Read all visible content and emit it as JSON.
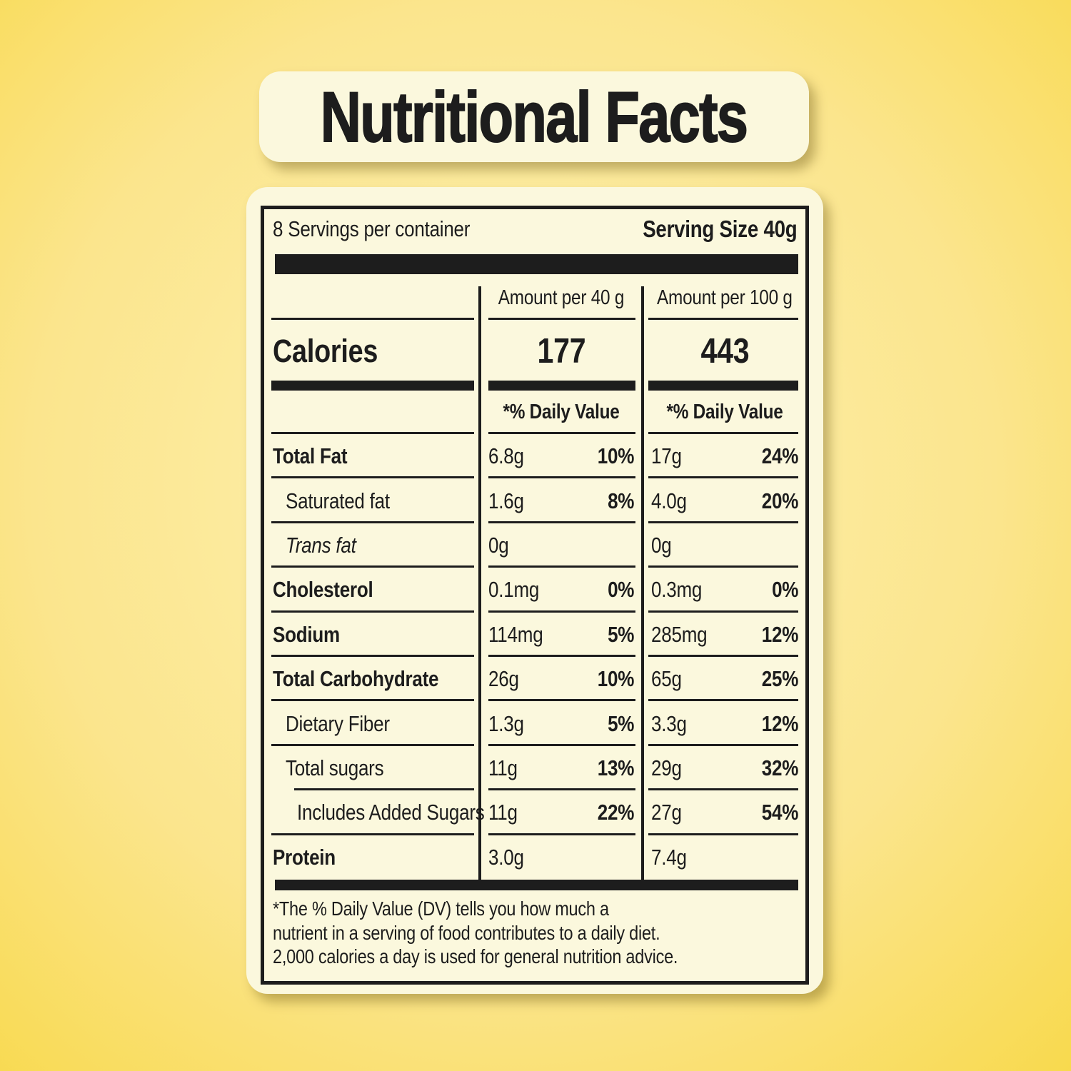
{
  "title": "Nutritional Facts",
  "serving": {
    "per_container": "8 Servings per container",
    "size": "Serving Size 40g"
  },
  "columns": {
    "per40_header": "Amount per 40 g",
    "per100_header": "Amount per 100 g"
  },
  "calories": {
    "label": "Calories",
    "per40": "177",
    "per100": "443"
  },
  "daily_value_header_40": "*% Daily Value",
  "daily_value_header_100": "*% Daily Value",
  "rows": [
    {
      "label": "Total Fat",
      "a40": "6.8g",
      "p40": "10%",
      "a100": "17g",
      "p100": "24%"
    },
    {
      "label": "Saturated fat",
      "a40": "1.6g",
      "p40": "8%",
      "a100": "4.0g",
      "p100": "20%"
    },
    {
      "label": "Trans fat",
      "a40": "0g",
      "p40": "",
      "a100": "0g",
      "p100": ""
    },
    {
      "label": "Cholesterol",
      "a40": "0.1mg",
      "p40": "0%",
      "a100": "0.3mg",
      "p100": "0%"
    },
    {
      "label": "Sodium",
      "a40": "114mg",
      "p40": "5%",
      "a100": "285mg",
      "p100": "12%"
    },
    {
      "label": "Total Carbohydrate",
      "a40": "26g",
      "p40": "10%",
      "a100": "65g",
      "p100": "25%"
    },
    {
      "label": "Dietary Fiber",
      "a40": "1.3g",
      "p40": "5%",
      "a100": "3.3g",
      "p100": "12%"
    },
    {
      "label": "Total sugars",
      "a40": "11g",
      "p40": "13%",
      "a100": "29g",
      "p100": "32%"
    },
    {
      "label": "Includes Added Sugars",
      "a40": "11g",
      "p40": "22%",
      "a100": "27g",
      "p100": "54%"
    },
    {
      "label": "Protein",
      "a40": "3.0g",
      "p40": "",
      "a100": "7.4g",
      "p100": ""
    }
  ],
  "footnote": {
    "lines": [
      "*The % Daily Value (DV) tells you how much a",
      "nutrient in a serving of food contributes to a daily diet.",
      "2,000 calories a day is used for general nutrition advice."
    ]
  },
  "colors": {
    "background_outer": "#f6d01b",
    "background_center": "#fdf2b3",
    "card": "#fbf8dd",
    "ink": "#1d1d1d"
  }
}
